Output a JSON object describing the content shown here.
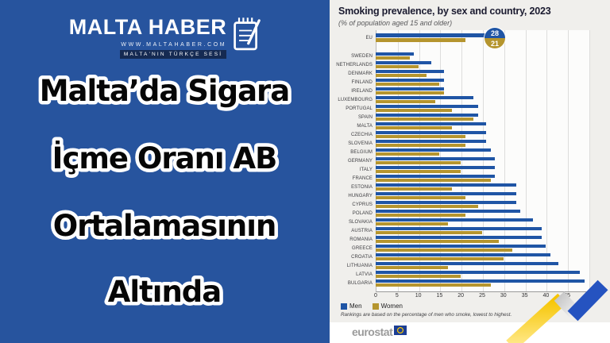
{
  "left_panel": {
    "background_color": "#27549e",
    "brand": {
      "title": "MALTA HABER",
      "website": "WWW.MALTAHABER.COM",
      "tagline": "MALTA'NIN TÜRKÇE SESİ",
      "tagline_bg": "#152a52"
    },
    "headline_lines": [
      "Malta’da Sigara",
      "İçme Oranı AB",
      "Ortalamasının",
      "Altında"
    ]
  },
  "chart_data": {
    "type": "bar",
    "orientation": "horizontal",
    "title": "Smoking prevalence, by sex and country, 2023",
    "subtitle": "(% of population aged 15 and older)",
    "xlim": [
      0,
      50
    ],
    "xticks": [
      0,
      5,
      10,
      15,
      20,
      25,
      30,
      35,
      40,
      45,
      50
    ],
    "grid": "vertical",
    "legend": [
      "Men",
      "Women"
    ],
    "legend_position": "bottom-left",
    "colors": {
      "men": "#1f55a5",
      "women": "#b5952e"
    },
    "eu": {
      "label": "EU",
      "men": 28,
      "women": 21
    },
    "categories": [
      "SWEDEN",
      "NETHERLANDS",
      "DENMARK",
      "FINLAND",
      "IRELAND",
      "LUXEMBOURG",
      "PORTUGAL",
      "SPAIN",
      "MALTA",
      "CZECHIA",
      "SLOVENIA",
      "BELGIUM",
      "GERMANY",
      "ITALY",
      "FRANCE",
      "ESTONIA",
      "HUNGARY",
      "CYPRUS",
      "POLAND",
      "SLOVAKIA",
      "AUSTRIA",
      "ROMANIA",
      "GREECE",
      "CROATIA",
      "LITHUANIA",
      "LATVIA",
      "BULGARIA"
    ],
    "series": [
      {
        "name": "Men",
        "values": [
          9,
          13,
          16,
          16,
          16,
          23,
          24,
          24,
          26,
          26,
          26,
          27,
          28,
          28,
          28,
          33,
          33,
          33,
          34,
          37,
          39,
          39,
          40,
          41,
          43,
          48,
          49
        ]
      },
      {
        "name": "Women",
        "values": [
          8,
          10,
          12,
          15,
          16,
          14,
          18,
          23,
          18,
          21,
          21,
          15,
          20,
          20,
          27,
          18,
          21,
          24,
          21,
          17,
          25,
          29,
          32,
          30,
          17,
          20,
          27
        ]
      }
    ],
    "footnote": "Rankings are based on the percentage of men who smoke, lowest to highest.",
    "source": "eurostat"
  }
}
